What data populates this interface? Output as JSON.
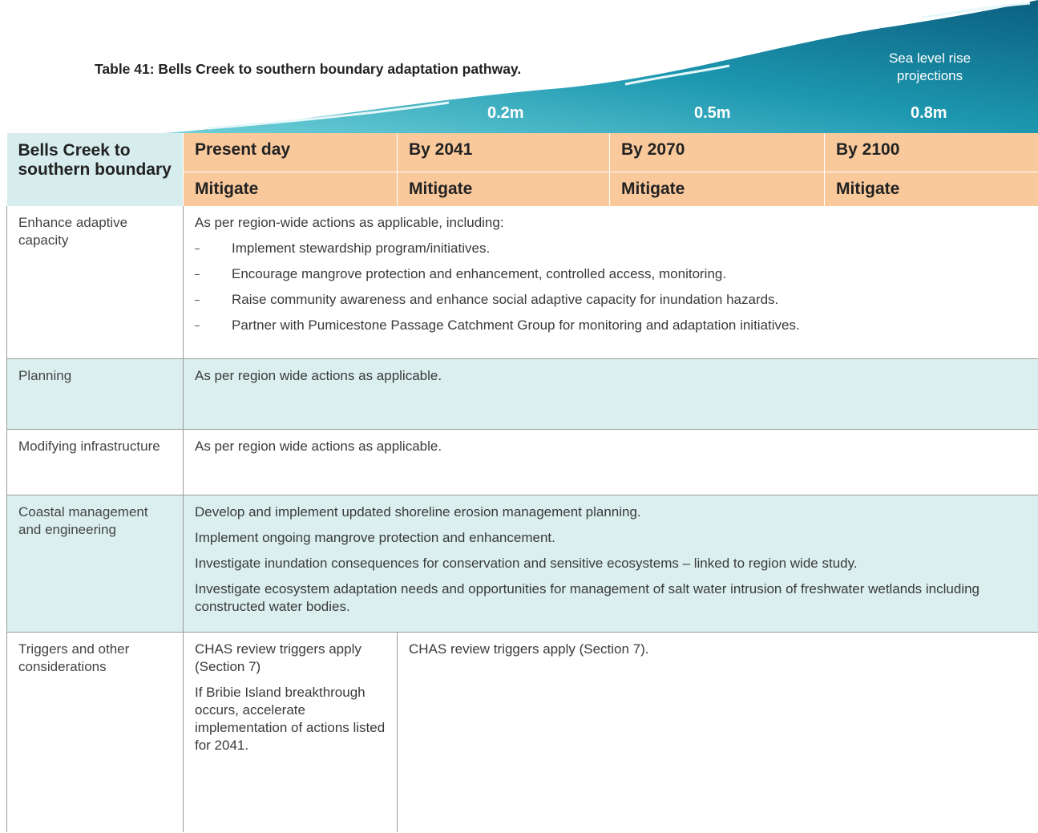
{
  "title": "Table 41: Bells Creek to southern boundary adaptation pathway.",
  "sea_level": {
    "label": "Sea level rise projections",
    "values": [
      "0.2m",
      "0.5m",
      "0.8m"
    ]
  },
  "table": {
    "header": {
      "region": "Bells Creek to southern boundary",
      "periods": [
        "Present day",
        "By 2041",
        "By 2070",
        "By 2100"
      ],
      "actions": [
        "Mitigate",
        "Mitigate",
        "Mitigate",
        "Mitigate"
      ]
    },
    "rows": [
      {
        "label": "Enhance adaptive capacity",
        "intro": "As per region-wide actions as applicable, including:",
        "bullets": [
          "Implement stewardship program/initiatives.",
          "Encourage mangrove protection and enhancement, controlled access, monitoring.",
          "Raise community awareness and enhance social adaptive capacity for inundation hazards.",
          "Partner with Pumicestone Passage Catchment Group for monitoring and adaptation initiatives."
        ]
      },
      {
        "label": "Planning",
        "paragraphs": [
          "As per region wide actions as applicable."
        ]
      },
      {
        "label": "Modifying infrastructure",
        "paragraphs": [
          "As per region wide actions as applicable."
        ]
      },
      {
        "label": "Coastal management and engineering",
        "paragraphs": [
          "Develop and implement updated shoreline erosion management planning.",
          "Implement ongoing mangrove protection and enhancement.",
          "Investigate inundation consequences for conservation and sensitive ecosystems – linked to region wide study.",
          "Investigate ecosystem adaptation needs and opportunities for management of salt water intrusion of freshwater wetlands including constructed water bodies."
        ]
      },
      {
        "label": "Triggers and other considerations",
        "present": [
          "CHAS review triggers apply (Section 7)",
          "If Bribie Island breakthrough occurs, accelerate implementation of actions listed for 2041."
        ],
        "later": [
          "CHAS review triggers apply (Section 7)."
        ]
      }
    ]
  }
}
